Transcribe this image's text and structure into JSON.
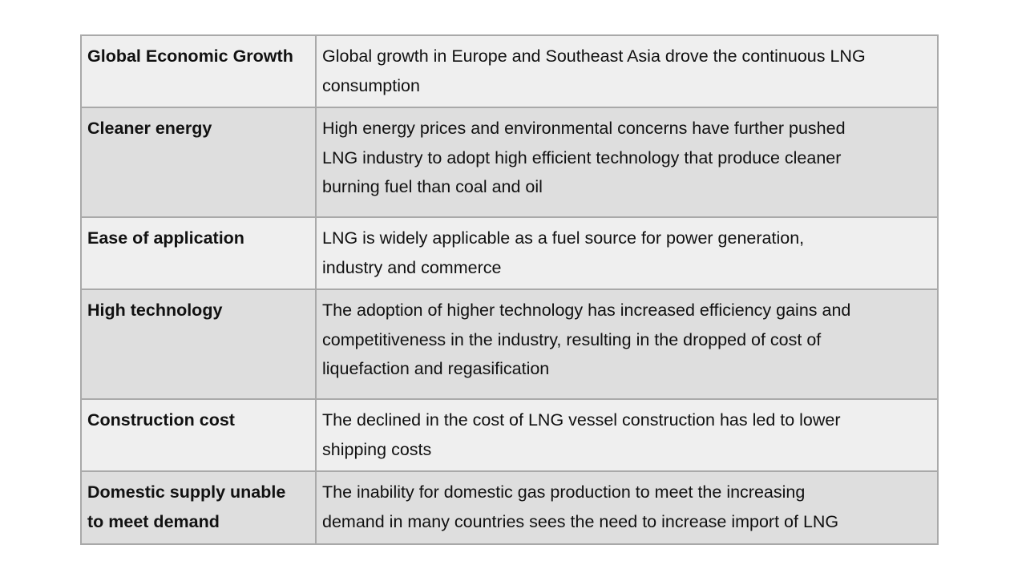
{
  "rows": [
    {
      "factor": [
        "Global Economic Growth"
      ],
      "description": [
        "Global growth in Europe and Southeast Asia drove the continuous LNG",
        "consumption"
      ]
    },
    {
      "factor": [
        "Cleaner energy"
      ],
      "description": [
        "High energy prices and environmental concerns have further pushed",
        "LNG industry to adopt high efficient technology that produce cleaner",
        "burning fuel than coal and oil"
      ]
    },
    {
      "factor": [
        "Ease of application"
      ],
      "description": [
        "LNG is widely applicable as a fuel source for power generation,",
        "industry and commerce"
      ]
    },
    {
      "factor": [
        "High technology"
      ],
      "description": [
        "The adoption of higher technology has increased efficiency gains and",
        "competitiveness in the industry, resulting in the dropped of cost of",
        "liquefaction and regasification"
      ]
    },
    {
      "factor": [
        "Construction cost"
      ],
      "description": [
        "The declined in the cost of LNG vessel construction has led to lower",
        "shipping costs"
      ]
    },
    {
      "factor": [
        "Domestic supply unable",
        "to meet demand"
      ],
      "description": [
        "The inability for domestic gas production to meet the increasing",
        "demand in many countries sees the need to increase import of LNG"
      ]
    }
  ]
}
